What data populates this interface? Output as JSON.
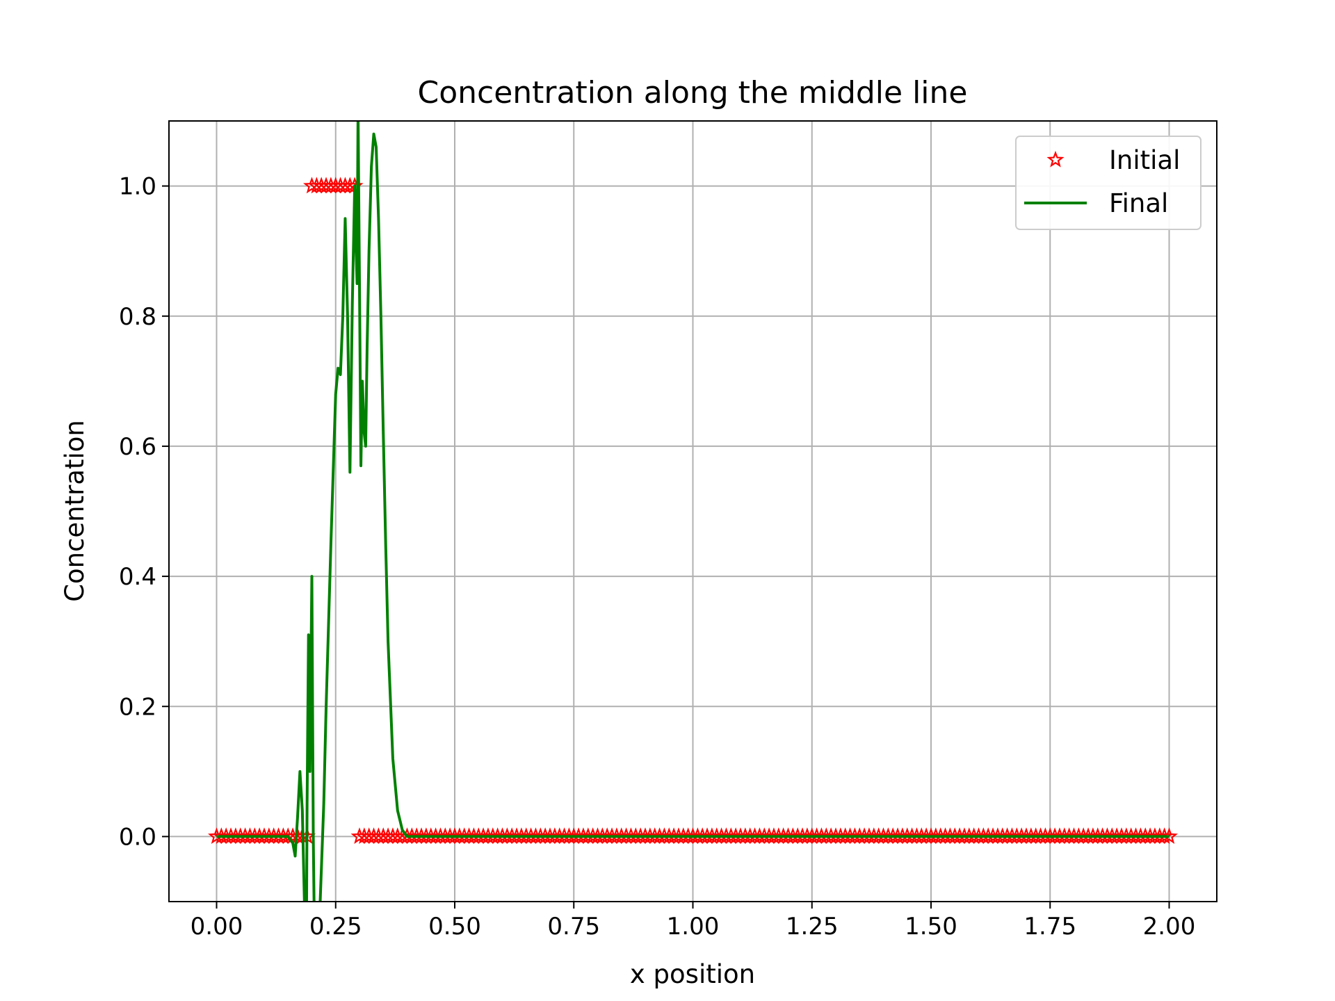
{
  "chart_data": {
    "type": "line",
    "title": "Concentration along the middle line",
    "xlabel": "x position",
    "ylabel": "Concentration",
    "xlim": [
      -0.1,
      2.1
    ],
    "ylim": [
      -0.1,
      1.1
    ],
    "xticks": [
      "0.00",
      "0.25",
      "0.50",
      "0.75",
      "1.00",
      "1.25",
      "1.50",
      "1.75",
      "2.00"
    ],
    "xtick_values": [
      0,
      0.25,
      0.5,
      0.75,
      1.0,
      1.25,
      1.5,
      1.75,
      2.0
    ],
    "yticks": [
      "0.0",
      "0.2",
      "0.4",
      "0.6",
      "0.8",
      "1.0"
    ],
    "ytick_values": [
      0,
      0.2,
      0.4,
      0.6,
      0.8,
      1.0
    ],
    "grid": true,
    "legend_position": "top-right",
    "series": [
      {
        "name": "Initial",
        "style": "markers",
        "marker": "star",
        "color": "#ff0000",
        "x_start": 0.0,
        "x_end": 2.0,
        "x_step": 0.01,
        "high_range": [
          0.2,
          0.3
        ],
        "high_value": 1.0,
        "low_value": 0.0
      },
      {
        "name": "Final",
        "style": "line",
        "color": "#008000",
        "x": [
          0.0,
          0.1,
          0.15,
          0.16,
          0.165,
          0.17,
          0.175,
          0.18,
          0.185,
          0.188,
          0.19,
          0.193,
          0.196,
          0.2,
          0.203,
          0.207,
          0.21,
          0.215,
          0.22,
          0.225,
          0.23,
          0.24,
          0.25,
          0.255,
          0.26,
          0.265,
          0.27,
          0.275,
          0.28,
          0.285,
          0.29,
          0.293,
          0.295,
          0.297,
          0.3,
          0.303,
          0.306,
          0.31,
          0.313,
          0.316,
          0.32,
          0.325,
          0.33,
          0.335,
          0.34,
          0.345,
          0.35,
          0.355,
          0.36,
          0.37,
          0.38,
          0.39,
          0.4,
          0.42,
          0.45,
          0.5,
          1.0,
          1.5,
          2.0
        ],
        "y": [
          0.0,
          0.0,
          0.0,
          -0.01,
          -0.03,
          0.03,
          0.1,
          0.04,
          -0.12,
          -0.25,
          0.05,
          0.31,
          0.1,
          0.4,
          0.0,
          -0.25,
          -0.3,
          -0.15,
          -0.05,
          0.05,
          0.2,
          0.45,
          0.68,
          0.72,
          0.71,
          0.8,
          0.95,
          0.8,
          0.56,
          0.82,
          1.0,
          0.9,
          0.85,
          1.12,
          0.85,
          0.57,
          0.7,
          0.62,
          0.6,
          0.75,
          0.9,
          1.03,
          1.08,
          1.06,
          0.95,
          0.8,
          0.62,
          0.45,
          0.3,
          0.12,
          0.04,
          0.01,
          0.0,
          0.0,
          0.0,
          0.0,
          0.0,
          0.0,
          0.0
        ]
      }
    ]
  }
}
